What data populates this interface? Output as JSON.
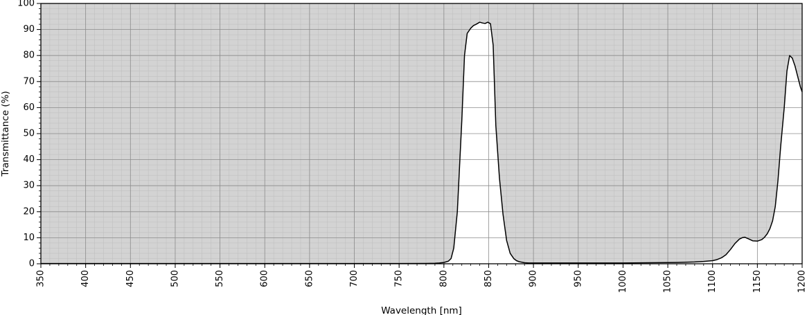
{
  "chart_data": {
    "type": "area",
    "title": "",
    "xlabel": "Wavelength [nm]",
    "ylabel": "Transmittance (%)",
    "xlim": [
      350,
      1200
    ],
    "ylim": [
      0,
      100
    ],
    "xticks": [
      350,
      400,
      450,
      500,
      550,
      600,
      650,
      700,
      750,
      800,
      850,
      900,
      950,
      1000,
      1050,
      1100,
      1150,
      1200
    ],
    "yticks": [
      0,
      10,
      20,
      30,
      40,
      50,
      60,
      70,
      80,
      90,
      100
    ],
    "x_minor_step": 10,
    "y_minor_step": 2,
    "grid": true,
    "legend": "none",
    "colors": {
      "plot_background": "#d3d3d3",
      "under_curve_fill": "#ffffff",
      "line": "#000000",
      "major_grid": "#8c8c8c",
      "minor_grid": "#bdbdbd"
    },
    "series": [
      {
        "x": [
          350,
          400,
          450,
          500,
          550,
          600,
          650,
          700,
          750,
          780,
          790,
          795,
          800,
          805,
          808,
          811,
          815,
          820,
          823,
          826,
          830,
          833,
          836,
          840,
          843,
          846,
          849,
          852,
          855,
          858,
          862,
          866,
          870,
          874,
          878,
          881,
          884,
          887,
          890,
          895,
          900,
          910,
          930,
          950,
          970,
          1000,
          1030,
          1060,
          1080,
          1090,
          1100,
          1105,
          1110,
          1115,
          1120,
          1125,
          1130,
          1133,
          1136,
          1140,
          1145,
          1150,
          1155,
          1158,
          1161,
          1164,
          1167,
          1170,
          1173,
          1176,
          1180,
          1183,
          1186,
          1189,
          1192,
          1195,
          1198,
          1200
        ],
        "y": [
          0.1,
          0.1,
          0.1,
          0.1,
          0.1,
          0.1,
          0.1,
          0.1,
          0.1,
          0.15,
          0.2,
          0.3,
          0.5,
          1.0,
          2.0,
          6.0,
          20,
          55,
          80,
          88.5,
          90.5,
          91.5,
          92,
          92.8,
          92.5,
          92.3,
          92.8,
          92.2,
          84,
          53,
          33,
          19,
          9,
          4,
          2,
          1.2,
          0.8,
          0.6,
          0.4,
          0.3,
          0.3,
          0.3,
          0.3,
          0.3,
          0.3,
          0.3,
          0.4,
          0.5,
          0.7,
          0.9,
          1.2,
          1.6,
          2.3,
          3.5,
          5.5,
          7.8,
          9.5,
          10,
          10.2,
          9.6,
          8.8,
          8.7,
          9.3,
          10.2,
          11.5,
          13.5,
          16.5,
          22,
          32,
          45,
          60,
          74,
          80,
          79,
          76,
          72,
          68,
          66
        ]
      }
    ]
  }
}
